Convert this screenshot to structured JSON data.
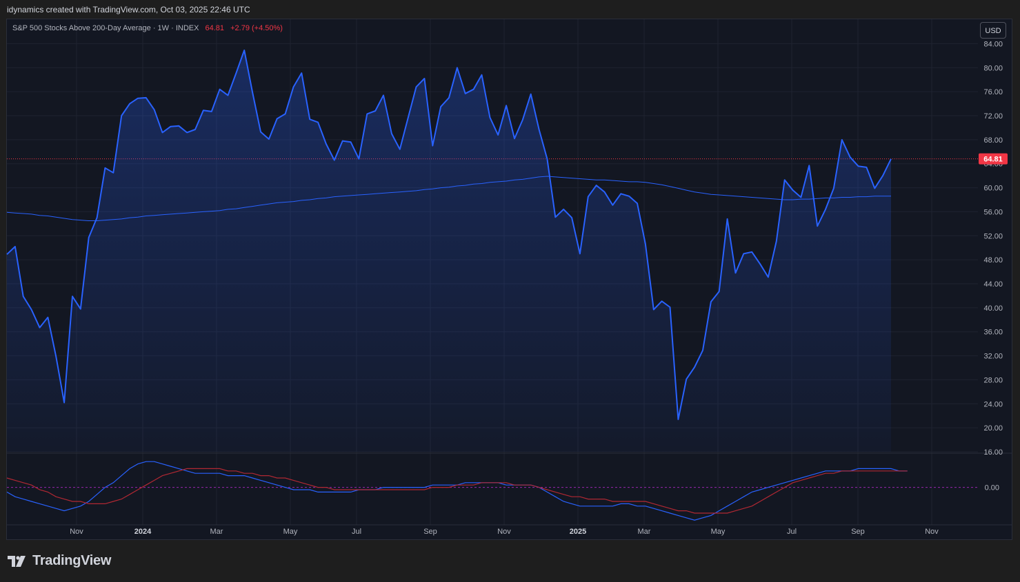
{
  "header": {
    "credit": "idynamics created with TradingView.com, Oct 03, 2025 22:46 UTC"
  },
  "legend": {
    "symbol": "S&P 500 Stocks Above 200-Day Average · 1W · INDEX",
    "price": "64.81",
    "change": "+2.79 (+4.50%)"
  },
  "currency": "USD",
  "brand": {
    "name": "TradingView",
    "logo_icon": "tradingview-logo-icon"
  },
  "colors": {
    "background": "#131722",
    "line": "#2962ff",
    "ma_line": "#2962ff",
    "signal_line": "#b22833",
    "price_tag": "#f23645",
    "grid": "#1f2330"
  },
  "chart_data": [
    {
      "type": "area",
      "title": "S&P 500 Stocks Above 200-Day Average",
      "interval": "1W",
      "y_ticks": [
        "84.00",
        "80.00",
        "76.00",
        "72.00",
        "68.00",
        "64.00",
        "60.00",
        "56.00",
        "52.00",
        "48.00",
        "44.00",
        "40.00",
        "36.00",
        "32.00",
        "28.00",
        "24.00",
        "20.00",
        "16.00"
      ],
      "ylim": [
        16,
        86
      ],
      "current_price_label": "64.81",
      "x_labels": [
        {
          "label": "Nov",
          "year": false
        },
        {
          "label": "2024",
          "year": true
        },
        {
          "label": "Mar",
          "year": false
        },
        {
          "label": "May",
          "year": false
        },
        {
          "label": "Jul",
          "year": false
        },
        {
          "label": "Sep",
          "year": false
        },
        {
          "label": "Nov",
          "year": false
        },
        {
          "label": "2025",
          "year": true
        },
        {
          "label": "Mar",
          "year": false
        },
        {
          "label": "May",
          "year": false
        },
        {
          "label": "Jul",
          "year": false
        },
        {
          "label": "Sep",
          "year": false
        },
        {
          "label": "Nov",
          "year": false
        }
      ],
      "series": [
        {
          "name": "S&P 500 Stocks Above 200-Day Average",
          "style": "area",
          "values": [
            48.9,
            50.2,
            41.9,
            39.7,
            36.7,
            38.4,
            31.9,
            24.2,
            41.9,
            39.8,
            51.7,
            55.0,
            63.3,
            62.5,
            72.0,
            74.0,
            74.9,
            75.0,
            73.0,
            69.2,
            70.2,
            70.3,
            69.2,
            69.7,
            72.9,
            72.7,
            76.4,
            75.4,
            79.1,
            82.9,
            75.9,
            69.3,
            68.1,
            71.5,
            72.3,
            76.8,
            79.1,
            71.4,
            70.9,
            67.3,
            64.6,
            67.8,
            67.6,
            64.8,
            72.3,
            72.8,
            75.4,
            69.0,
            66.4,
            71.6,
            76.8,
            78.2,
            67.0,
            73.5,
            75.0,
            80.0,
            75.7,
            76.4,
            78.8,
            71.7,
            68.8,
            73.7,
            68.2,
            71.3,
            75.6,
            69.7,
            64.8,
            55.1,
            56.4,
            55.0,
            49.0,
            58.5,
            60.4,
            59.3,
            57.1,
            59.0,
            58.6,
            57.4,
            50.6,
            39.7,
            41.1,
            40.1,
            21.4,
            28.1,
            30.1,
            32.9,
            41.0,
            42.7,
            54.8,
            45.8,
            49.0,
            49.3,
            47.3,
            45.1,
            51.1,
            61.3,
            59.6,
            58.4,
            63.7,
            53.6,
            56.4,
            59.9,
            68.0,
            65.1,
            63.6,
            63.4,
            59.9,
            62.0,
            64.81
          ]
        },
        {
          "name": "200-period moving average",
          "style": "line",
          "values": [
            55.9,
            55.8,
            55.7,
            55.6,
            55.4,
            55.3,
            55.1,
            54.9,
            54.7,
            54.6,
            54.5,
            54.5,
            54.6,
            54.7,
            54.8,
            55.0,
            55.1,
            55.3,
            55.4,
            55.5,
            55.6,
            55.7,
            55.8,
            55.9,
            56.0,
            56.1,
            56.2,
            56.4,
            56.5,
            56.7,
            56.9,
            57.1,
            57.3,
            57.5,
            57.6,
            57.7,
            57.9,
            58.0,
            58.2,
            58.3,
            58.5,
            58.6,
            58.7,
            58.8,
            58.9,
            59.0,
            59.1,
            59.2,
            59.3,
            59.4,
            59.5,
            59.7,
            59.8,
            60.0,
            60.1,
            60.3,
            60.4,
            60.6,
            60.7,
            60.9,
            61.0,
            61.1,
            61.3,
            61.4,
            61.6,
            61.8,
            61.9,
            61.8,
            61.7,
            61.6,
            61.5,
            61.4,
            61.3,
            61.3,
            61.2,
            61.1,
            61.0,
            61.0,
            60.9,
            60.7,
            60.5,
            60.2,
            59.9,
            59.6,
            59.3,
            59.1,
            58.9,
            58.8,
            58.7,
            58.6,
            58.5,
            58.4,
            58.3,
            58.2,
            58.1,
            58.0,
            58.0,
            58.1,
            58.1,
            58.2,
            58.3,
            58.3,
            58.4,
            58.4,
            58.5,
            58.5,
            58.6,
            58.6,
            58.6
          ]
        }
      ]
    },
    {
      "type": "line",
      "title": "",
      "y_ticks": [
        "0.00"
      ],
      "ylim": [
        -16,
        14
      ],
      "series": [
        {
          "name": "oscillator",
          "style": "line",
          "values": [
            -2,
            -4,
            -5,
            -6,
            -7,
            -8,
            -9,
            -10,
            -9,
            -8,
            -6,
            -3,
            0,
            2,
            5,
            8,
            10,
            11,
            11,
            10,
            9,
            8,
            7,
            6,
            6,
            6,
            6,
            5,
            5,
            5,
            4,
            3,
            2,
            1,
            0,
            -1,
            -1,
            -1,
            -2,
            -2,
            -2,
            -2,
            -2,
            -1,
            -1,
            -1,
            0,
            0,
            0,
            0,
            0,
            0,
            1,
            1,
            1,
            1,
            2,
            2,
            2,
            2,
            2,
            1,
            1,
            1,
            1,
            0,
            -2,
            -4,
            -6,
            -7,
            -8,
            -8,
            -8,
            -8,
            -8,
            -7,
            -7,
            -8,
            -8,
            -9,
            -10,
            -11,
            -12,
            -13,
            -14,
            -13,
            -12,
            -10,
            -8,
            -6,
            -4,
            -2,
            -1,
            0,
            1,
            2,
            3,
            4,
            5,
            6,
            7,
            7,
            7,
            7,
            8,
            8,
            8,
            8,
            8,
            7,
            7
          ]
        },
        {
          "name": "signal",
          "style": "line",
          "values": [
            4,
            3,
            2,
            1,
            -1,
            -2,
            -4,
            -5,
            -6,
            -6,
            -7,
            -7,
            -7,
            -6,
            -5,
            -3,
            -1,
            1,
            3,
            5,
            6,
            7,
            8,
            8,
            8,
            8,
            8,
            7,
            7,
            6,
            6,
            5,
            5,
            4,
            4,
            3,
            2,
            1,
            0,
            0,
            -1,
            -1,
            -1,
            -1,
            -1,
            -1,
            -1,
            -1,
            -1,
            -1,
            -1,
            -1,
            0,
            0,
            0,
            1,
            1,
            1,
            2,
            2,
            2,
            2,
            1,
            1,
            1,
            0,
            -1,
            -2,
            -3,
            -4,
            -4,
            -5,
            -5,
            -5,
            -6,
            -6,
            -6,
            -6,
            -6,
            -7,
            -8,
            -9,
            -10,
            -10,
            -11,
            -11,
            -11,
            -11,
            -11,
            -10,
            -9,
            -8,
            -6,
            -4,
            -2,
            0,
            2,
            3,
            4,
            5,
            6,
            6,
            7,
            7,
            7,
            7,
            7,
            7,
            7,
            7,
            7
          ]
        }
      ]
    }
  ]
}
